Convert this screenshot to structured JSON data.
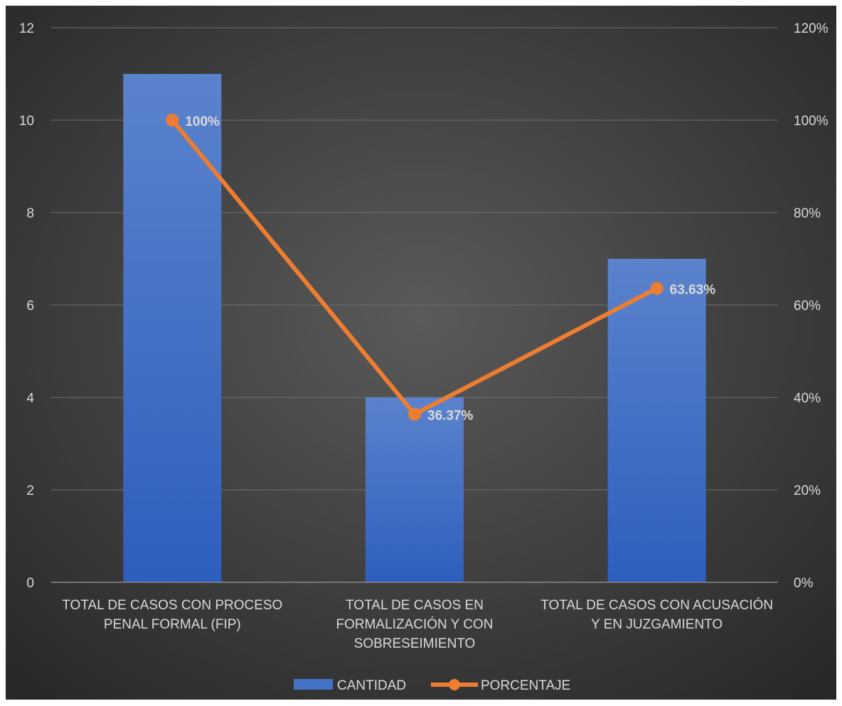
{
  "chart_data": {
    "type": "bar",
    "categories": [
      [
        "TOTAL DE CASOS CON PROCESO",
        "PENAL FORMAL (FIP)"
      ],
      [
        "TOTAL DE CASOS EN",
        "FORMALIZACIÓN Y CON",
        "SOBRESEIMIENTO"
      ],
      [
        "TOTAL DE CASOS CON ACUSACIÓN",
        "Y EN JUZGAMIENTO"
      ]
    ],
    "series": [
      {
        "name": "CANTIDAD",
        "type": "bar",
        "axis": "left",
        "values": [
          11,
          4,
          7
        ],
        "color": "#4472C4"
      },
      {
        "name": "PORCENTAJE",
        "type": "line",
        "axis": "right",
        "values": [
          100,
          36.37,
          63.63
        ],
        "labels": [
          "100%",
          "36.37%",
          "63.63%"
        ],
        "color": "#ED7D31"
      }
    ],
    "y_left": {
      "min": 0,
      "max": 12,
      "ticks": [
        "0",
        "2",
        "4",
        "6",
        "8",
        "10",
        "12"
      ]
    },
    "y_right": {
      "min": 0,
      "max": 120,
      "ticks": [
        "0%",
        "20%",
        "40%",
        "60%",
        "80%",
        "100%",
        "120%"
      ]
    },
    "grid": true,
    "legend_position": "bottom",
    "background_colors": [
      "#595959",
      "#262626"
    ],
    "text_color": "#D9D9D9"
  }
}
